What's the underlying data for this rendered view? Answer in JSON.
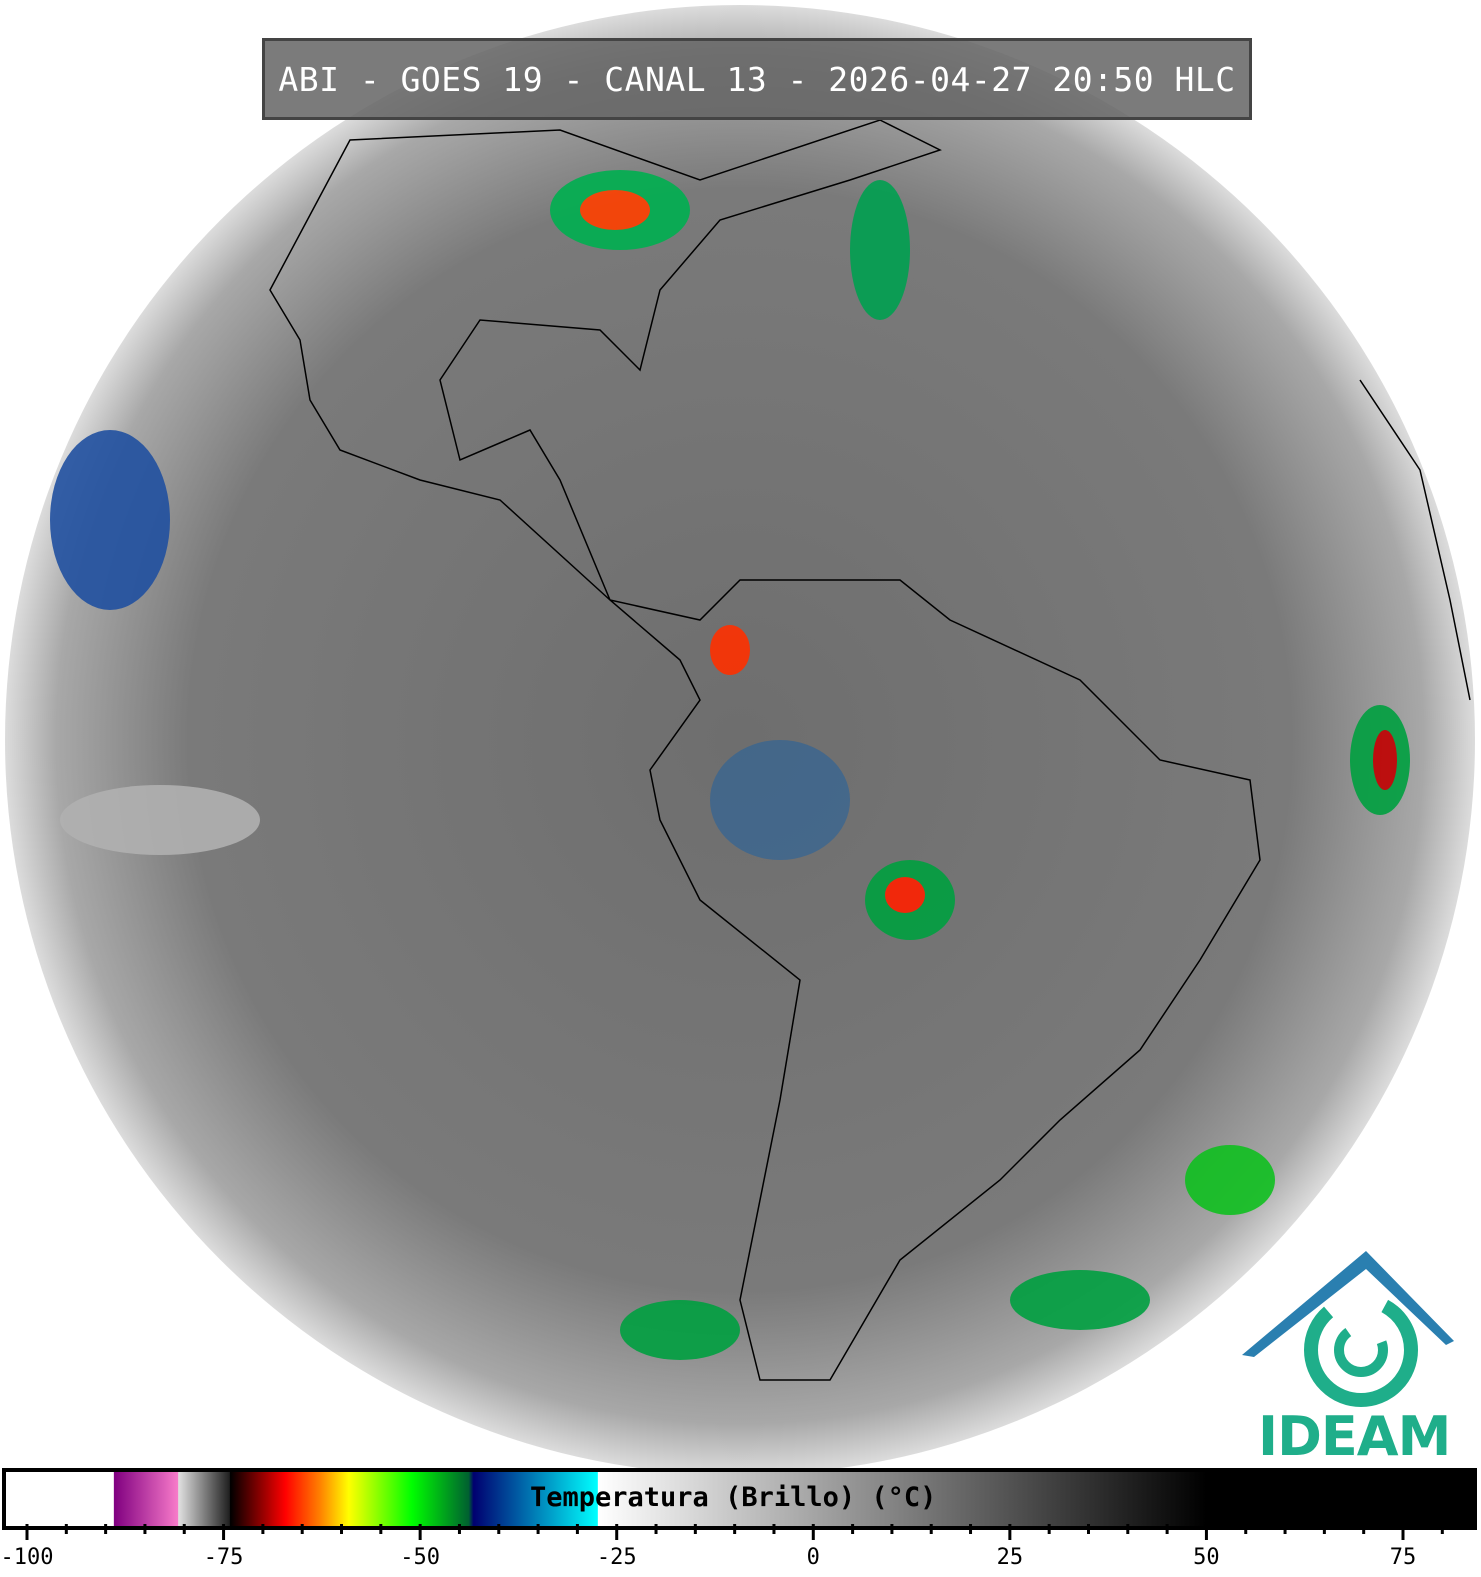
{
  "title": "ABI - GOES 19 - CANAL 13 - 2026-04-27 20:50 HLC",
  "logo": {
    "text": "IDEAM",
    "color": "#1fae8a"
  },
  "colorbar": {
    "label": "Temperatura (Brillo) (°C)",
    "range": [
      -103,
      84
    ],
    "major_ticks": [
      -100,
      -75,
      -50,
      -25,
      0,
      25,
      50,
      75
    ],
    "minor_tick_step": 5,
    "tick_labels": [
      "-100",
      "-75",
      "-50",
      "-25",
      "0",
      "25",
      "50",
      "75"
    ],
    "stops": [
      {
        "t": -103,
        "color": "#ffffff"
      },
      {
        "t": -89.3,
        "color": "#ffffff"
      },
      {
        "t": -89.2,
        "color": "#800080"
      },
      {
        "t": -81.1,
        "color": "#f77ac9"
      },
      {
        "t": -81,
        "color": "#e0e0e0"
      },
      {
        "t": -74.5,
        "color": "#202020"
      },
      {
        "t": -74.4,
        "color": "#000000"
      },
      {
        "t": -67.4,
        "color": "#ff0000"
      },
      {
        "t": -63,
        "color": "#ff8000"
      },
      {
        "t": -59.3,
        "color": "#ffff00"
      },
      {
        "t": -51.3,
        "color": "#00ff00"
      },
      {
        "t": -44,
        "color": "#006030"
      },
      {
        "t": -43.4,
        "color": "#000070"
      },
      {
        "t": -27.6,
        "color": "#00ffff"
      },
      {
        "t": -27.5,
        "color": "#ffffff"
      },
      {
        "t": 50,
        "color": "#000000"
      },
      {
        "t": 84,
        "color": "#000000"
      }
    ]
  }
}
